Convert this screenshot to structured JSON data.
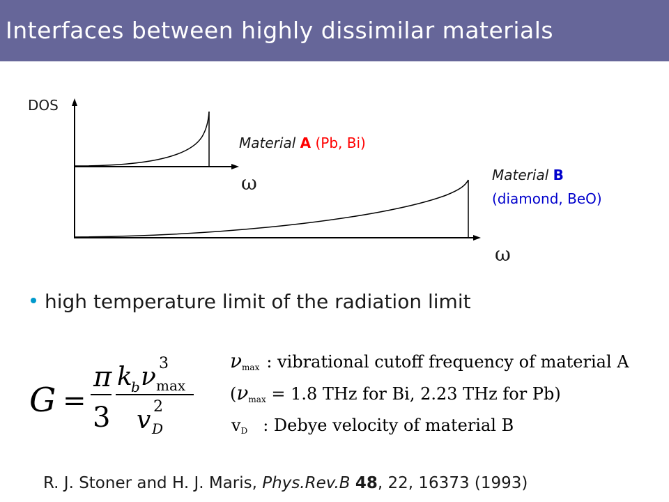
{
  "title": "Interfaces between highly dissimilar materials",
  "diagram": {
    "y_axis_label": "DOS",
    "omega_symbol": "ω",
    "material_a": {
      "prefix": "Material ",
      "letter": "A",
      "suffix": " (Pb, Bi)",
      "color": "#ff0000"
    },
    "material_b": {
      "prefix": "Material ",
      "letter": "B",
      "line2": "(diamond, BeO)",
      "color": "#0000cc"
    }
  },
  "bullet": "high temperature limit of the radiation limit",
  "formula": {
    "lhs": "G",
    "equals": "=",
    "pi": "π",
    "three": "3",
    "k": "k",
    "b_sub": "b",
    "nu": "ν",
    "cube": "3",
    "max": "max",
    "square": "2",
    "D_sub": "D",
    "v": "v"
  },
  "definitions": {
    "line1_sub": "max",
    "line1_text": ": vibrational cutoff frequency of material A",
    "line2_open": "(",
    "line2_text": " = 1.8 THz for Bi, 2.23 THz for Pb)",
    "line3_v": "v",
    "line3_sub": "D",
    "line3_text": ": Debye velocity of material B"
  },
  "reference": {
    "authors": "R. J. Stoner and H. J. Maris, ",
    "journal": "Phys.Rev.B",
    "sep": " ",
    "volume": "48",
    "rest": ", 22, 16373 (1993)"
  }
}
